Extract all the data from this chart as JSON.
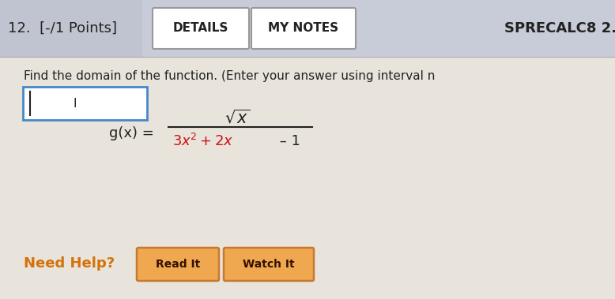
{
  "header_text": "12.  [-/1 Points]",
  "btn_details": "DETAILS",
  "btn_mynotes": "MY NOTES",
  "header_right": "SPRECALC8 2.",
  "question_text": "Find the domain of the function. (Enter your answer using interval n",
  "gx_label": "g(x) =",
  "numerator": "$\\sqrt{x}$",
  "denom_red": "$3x^2 + 2x$",
  "denom_black": " – 1",
  "need_help_text": "Need Help?",
  "btn_readit": "Read It",
  "btn_watchit": "Watch It",
  "header_color": "#c8ccd8",
  "main_bg": "#e8e4dc",
  "orange_color": "#d4720a",
  "red_color": "#cc1111",
  "black_color": "#222222",
  "input_box_color": "#4488cc",
  "btn_orange_fill": "#f0a850",
  "btn_orange_border": "#c87830",
  "white": "#ffffff",
  "gray_border": "#999999"
}
